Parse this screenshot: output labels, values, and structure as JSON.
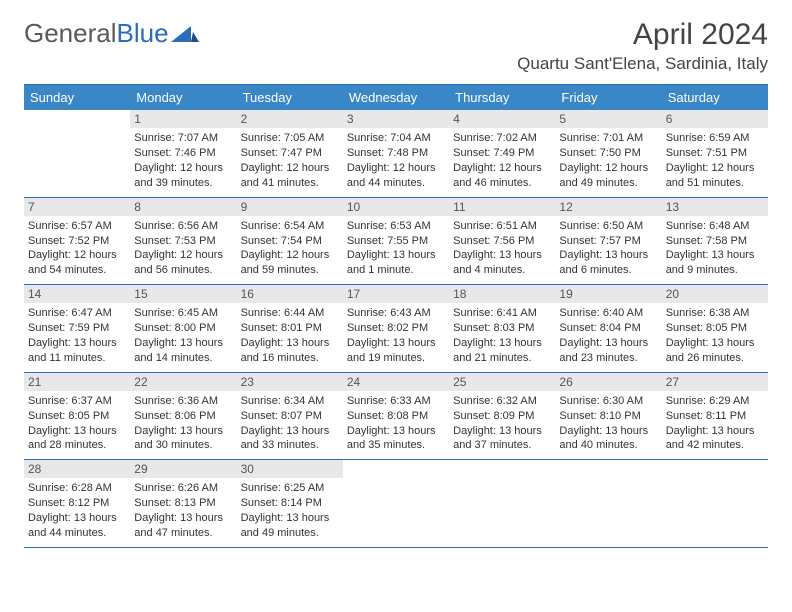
{
  "logo": {
    "text1": "General",
    "text2": "Blue"
  },
  "title": "April 2024",
  "location": "Quartu Sant'Elena, Sardinia, Italy",
  "colors": {
    "header_bg": "#3a87c8",
    "border": "#2a6db8",
    "daynum_bg": "#e8e8e8",
    "text": "#333333"
  },
  "dayNames": [
    "Sunday",
    "Monday",
    "Tuesday",
    "Wednesday",
    "Thursday",
    "Friday",
    "Saturday"
  ],
  "weeks": [
    [
      null,
      {
        "n": "1",
        "sr": "7:07 AM",
        "ss": "7:46 PM",
        "dl": "12 hours and 39 minutes."
      },
      {
        "n": "2",
        "sr": "7:05 AM",
        "ss": "7:47 PM",
        "dl": "12 hours and 41 minutes."
      },
      {
        "n": "3",
        "sr": "7:04 AM",
        "ss": "7:48 PM",
        "dl": "12 hours and 44 minutes."
      },
      {
        "n": "4",
        "sr": "7:02 AM",
        "ss": "7:49 PM",
        "dl": "12 hours and 46 minutes."
      },
      {
        "n": "5",
        "sr": "7:01 AM",
        "ss": "7:50 PM",
        "dl": "12 hours and 49 minutes."
      },
      {
        "n": "6",
        "sr": "6:59 AM",
        "ss": "7:51 PM",
        "dl": "12 hours and 51 minutes."
      }
    ],
    [
      {
        "n": "7",
        "sr": "6:57 AM",
        "ss": "7:52 PM",
        "dl": "12 hours and 54 minutes."
      },
      {
        "n": "8",
        "sr": "6:56 AM",
        "ss": "7:53 PM",
        "dl": "12 hours and 56 minutes."
      },
      {
        "n": "9",
        "sr": "6:54 AM",
        "ss": "7:54 PM",
        "dl": "12 hours and 59 minutes."
      },
      {
        "n": "10",
        "sr": "6:53 AM",
        "ss": "7:55 PM",
        "dl": "13 hours and 1 minute."
      },
      {
        "n": "11",
        "sr": "6:51 AM",
        "ss": "7:56 PM",
        "dl": "13 hours and 4 minutes."
      },
      {
        "n": "12",
        "sr": "6:50 AM",
        "ss": "7:57 PM",
        "dl": "13 hours and 6 minutes."
      },
      {
        "n": "13",
        "sr": "6:48 AM",
        "ss": "7:58 PM",
        "dl": "13 hours and 9 minutes."
      }
    ],
    [
      {
        "n": "14",
        "sr": "6:47 AM",
        "ss": "7:59 PM",
        "dl": "13 hours and 11 minutes."
      },
      {
        "n": "15",
        "sr": "6:45 AM",
        "ss": "8:00 PM",
        "dl": "13 hours and 14 minutes."
      },
      {
        "n": "16",
        "sr": "6:44 AM",
        "ss": "8:01 PM",
        "dl": "13 hours and 16 minutes."
      },
      {
        "n": "17",
        "sr": "6:43 AM",
        "ss": "8:02 PM",
        "dl": "13 hours and 19 minutes."
      },
      {
        "n": "18",
        "sr": "6:41 AM",
        "ss": "8:03 PM",
        "dl": "13 hours and 21 minutes."
      },
      {
        "n": "19",
        "sr": "6:40 AM",
        "ss": "8:04 PM",
        "dl": "13 hours and 23 minutes."
      },
      {
        "n": "20",
        "sr": "6:38 AM",
        "ss": "8:05 PM",
        "dl": "13 hours and 26 minutes."
      }
    ],
    [
      {
        "n": "21",
        "sr": "6:37 AM",
        "ss": "8:05 PM",
        "dl": "13 hours and 28 minutes."
      },
      {
        "n": "22",
        "sr": "6:36 AM",
        "ss": "8:06 PM",
        "dl": "13 hours and 30 minutes."
      },
      {
        "n": "23",
        "sr": "6:34 AM",
        "ss": "8:07 PM",
        "dl": "13 hours and 33 minutes."
      },
      {
        "n": "24",
        "sr": "6:33 AM",
        "ss": "8:08 PM",
        "dl": "13 hours and 35 minutes."
      },
      {
        "n": "25",
        "sr": "6:32 AM",
        "ss": "8:09 PM",
        "dl": "13 hours and 37 minutes."
      },
      {
        "n": "26",
        "sr": "6:30 AM",
        "ss": "8:10 PM",
        "dl": "13 hours and 40 minutes."
      },
      {
        "n": "27",
        "sr": "6:29 AM",
        "ss": "8:11 PM",
        "dl": "13 hours and 42 minutes."
      }
    ],
    [
      {
        "n": "28",
        "sr": "6:28 AM",
        "ss": "8:12 PM",
        "dl": "13 hours and 44 minutes."
      },
      {
        "n": "29",
        "sr": "6:26 AM",
        "ss": "8:13 PM",
        "dl": "13 hours and 47 minutes."
      },
      {
        "n": "30",
        "sr": "6:25 AM",
        "ss": "8:14 PM",
        "dl": "13 hours and 49 minutes."
      },
      null,
      null,
      null,
      null
    ]
  ],
  "labels": {
    "sunrise": "Sunrise: ",
    "sunset": "Sunset: ",
    "daylight": "Daylight: "
  }
}
